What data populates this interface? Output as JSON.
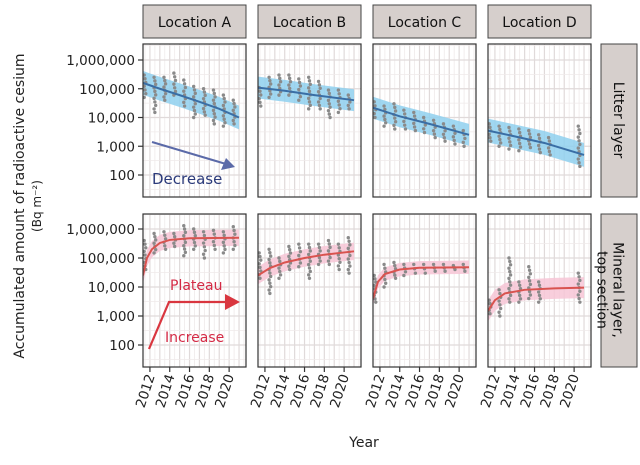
{
  "chart_data": {
    "type": "scatter",
    "xlabel": "Year",
    "ylabel": "Accumulated amount of radioactive cesium",
    "ylabel_unit": "(Bq m⁻²)",
    "y_scale": "log",
    "grid": true,
    "x_ticks": [
      "2012",
      "2014",
      "2016",
      "2018",
      "2020"
    ],
    "y_ticks": [
      "100",
      "1,000",
      "10,000",
      "100,000",
      "1,000,000"
    ],
    "columns": [
      "Location A",
      "Location B",
      "Location C",
      "Location D"
    ],
    "rows": [
      "Litter layer",
      "Mineral layer, top section"
    ],
    "colors": {
      "litter_line": "#3a6ea5",
      "litter_band": "#8fd0ee",
      "mineral_line": "#d9534f",
      "mineral_band": "#f7c6d6",
      "points": "#8a8a8a"
    },
    "annotations": [
      {
        "panel": "Litter layer / Location A",
        "text": "Decrease",
        "color": "#2b3a7a"
      },
      {
        "panel": "Mineral layer / Location A",
        "text": "Plateau",
        "color": "#d42a45"
      },
      {
        "panel": "Mineral layer / Location A",
        "text": "Increase",
        "color": "#d42a45"
      }
    ],
    "panels": [
      {
        "row": 0,
        "col": 0,
        "band_factor": 2.6,
        "fit": [
          [
            2011.3,
            160000
          ],
          [
            2013,
            100000
          ],
          [
            2015,
            60000
          ],
          [
            2017,
            35000
          ],
          [
            2019,
            20000
          ],
          [
            2021,
            10000
          ]
        ],
        "obs": [
          [
            2011.5,
            50000,
            300000
          ],
          [
            2012.5,
            15000,
            250000
          ],
          [
            2013.5,
            40000,
            250000
          ],
          [
            2014.5,
            60000,
            350000
          ],
          [
            2015.5,
            25000,
            200000
          ],
          [
            2016.5,
            10000,
            120000
          ],
          [
            2017.5,
            12000,
            100000
          ],
          [
            2018.5,
            6000,
            90000
          ],
          [
            2019.5,
            5000,
            60000
          ],
          [
            2020.5,
            6000,
            40000
          ]
        ]
      },
      {
        "row": 0,
        "col": 1,
        "band_factor": 2.4,
        "fit": [
          [
            2011.3,
            110000
          ],
          [
            2014,
            85000
          ],
          [
            2017,
            60000
          ],
          [
            2021,
            40000
          ]
        ],
        "obs": [
          [
            2011.5,
            25000,
            110000
          ],
          [
            2012.5,
            50000,
            250000
          ],
          [
            2013.5,
            60000,
            300000
          ],
          [
            2014.5,
            60000,
            300000
          ],
          [
            2015.5,
            40000,
            220000
          ],
          [
            2016.5,
            20000,
            250000
          ],
          [
            2017.5,
            20000,
            180000
          ],
          [
            2018.5,
            10000,
            90000
          ],
          [
            2019.5,
            15000,
            90000
          ],
          [
            2020.5,
            20000,
            60000
          ]
        ]
      },
      {
        "row": 0,
        "col": 2,
        "band_factor": 2.4,
        "fit": [
          [
            2011.3,
            22000
          ],
          [
            2014,
            11000
          ],
          [
            2017,
            6000
          ],
          [
            2021,
            2500
          ]
        ],
        "obs": [
          [
            2011.5,
            10000,
            35000
          ],
          [
            2012.5,
            5000,
            25000
          ],
          [
            2013.5,
            4000,
            30000
          ],
          [
            2014.5,
            4000,
            18000
          ],
          [
            2015.5,
            3500,
            15000
          ],
          [
            2016.5,
            3000,
            10000
          ],
          [
            2017.5,
            2000,
            8000
          ],
          [
            2018.5,
            1500,
            6000
          ],
          [
            2019.5,
            1200,
            5000
          ],
          [
            2020.5,
            1000,
            3500
          ]
        ]
      },
      {
        "row": 0,
        "col": 3,
        "band_factor": 2.6,
        "fit": [
          [
            2011.3,
            3500
          ],
          [
            2014,
            2200
          ],
          [
            2017,
            1300
          ],
          [
            2021,
            500
          ]
        ],
        "obs": [
          [
            2011.5,
            1500,
            6000
          ],
          [
            2012.5,
            1000,
            5000
          ],
          [
            2013.5,
            800,
            4500
          ],
          [
            2014.5,
            700,
            4000
          ],
          [
            2015.5,
            900,
            3500
          ],
          [
            2016.5,
            600,
            2500
          ],
          [
            2017.5,
            500,
            2000
          ],
          [
            2020.5,
            200,
            5000
          ]
        ]
      },
      {
        "row": 1,
        "col": 0,
        "band_factor": 1.9,
        "fit": [
          [
            2011.3,
            25000
          ],
          [
            2011.7,
            100000
          ],
          [
            2012.2,
            200000
          ],
          [
            2013,
            330000
          ],
          [
            2014,
            420000
          ],
          [
            2016,
            480000
          ],
          [
            2021,
            500000
          ]
        ],
        "obs": [
          [
            2011.5,
            40000,
            400000
          ],
          [
            2012.5,
            150000,
            700000
          ],
          [
            2013.5,
            200000,
            800000
          ],
          [
            2014.5,
            250000,
            700000
          ],
          [
            2015.5,
            120000,
            1300000
          ],
          [
            2016.5,
            200000,
            1000000
          ],
          [
            2017.5,
            100000,
            800000
          ],
          [
            2018.5,
            200000,
            900000
          ],
          [
            2019.5,
            150000,
            800000
          ],
          [
            2020.5,
            200000,
            1200000
          ]
        ]
      },
      {
        "row": 1,
        "col": 1,
        "band_factor": 2.0,
        "fit": [
          [
            2011.3,
            25000
          ],
          [
            2012.5,
            45000
          ],
          [
            2014,
            70000
          ],
          [
            2016,
            100000
          ],
          [
            2018,
            130000
          ],
          [
            2021,
            170000
          ]
        ],
        "obs": [
          [
            2011.5,
            20000,
            150000
          ],
          [
            2012.5,
            6000,
            200000
          ],
          [
            2013.5,
            20000,
            100000
          ],
          [
            2014.5,
            40000,
            250000
          ],
          [
            2015.5,
            50000,
            300000
          ],
          [
            2016.5,
            20000,
            300000
          ],
          [
            2017.5,
            60000,
            300000
          ],
          [
            2018.5,
            60000,
            400000
          ],
          [
            2019.5,
            40000,
            300000
          ],
          [
            2020.5,
            30000,
            500000
          ]
        ]
      },
      {
        "row": 1,
        "col": 2,
        "band_factor": 1.7,
        "fit": [
          [
            2011.3,
            4000
          ],
          [
            2011.8,
            15000
          ],
          [
            2012.5,
            28000
          ],
          [
            2014,
            40000
          ],
          [
            2016,
            46000
          ],
          [
            2021,
            48000
          ]
        ],
        "obs": [
          [
            2011.5,
            3000,
            25000
          ],
          [
            2012.5,
            10000,
            60000
          ],
          [
            2013.5,
            20000,
            70000
          ],
          [
            2014.5,
            25000,
            60000
          ],
          [
            2015.5,
            30000,
            60000
          ],
          [
            2016.5,
            30000,
            60000
          ],
          [
            2017.5,
            35000,
            60000
          ],
          [
            2018.5,
            35000,
            60000
          ],
          [
            2019.5,
            40000,
            55000
          ],
          [
            2020.5,
            35000,
            60000
          ]
        ]
      },
      {
        "row": 1,
        "col": 3,
        "band_factor": 2.3,
        "fit": [
          [
            2011.3,
            1500
          ],
          [
            2012,
            3500
          ],
          [
            2013,
            6000
          ],
          [
            2015,
            8000
          ],
          [
            2018,
            9000
          ],
          [
            2021,
            9500
          ]
        ],
        "obs": [
          [
            2011.5,
            1200,
            3500
          ],
          [
            2012.5,
            1000,
            8000
          ],
          [
            2013.5,
            3000,
            100000
          ],
          [
            2014.5,
            3000,
            15000
          ],
          [
            2015.5,
            4000,
            50000
          ],
          [
            2016.5,
            3000,
            15000
          ],
          [
            2020.5,
            3000,
            30000
          ]
        ]
      }
    ]
  }
}
